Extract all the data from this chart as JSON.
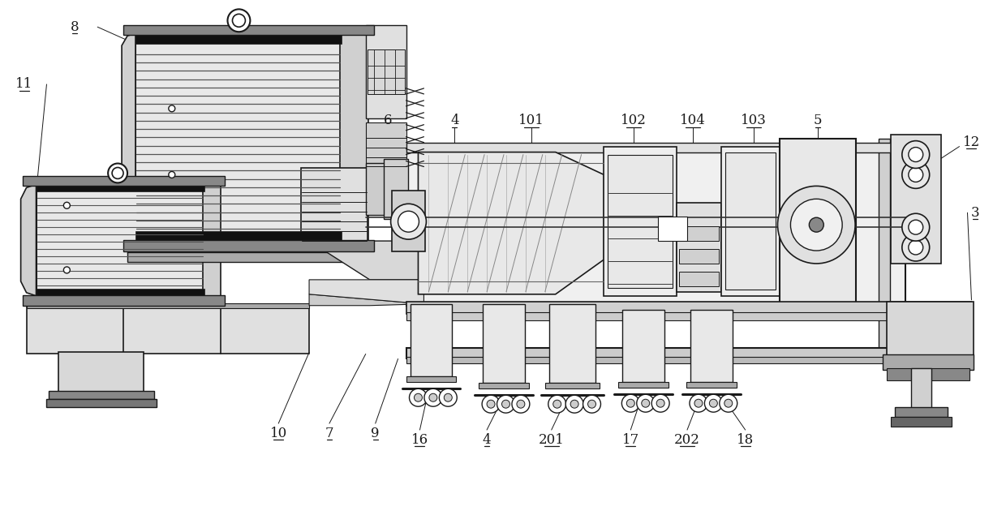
{
  "background_color": "#ffffff",
  "line_color": "#1a1a1a",
  "label_fontsize": 11,
  "line_width": 1.0,
  "figure_width": 12.4,
  "figure_height": 6.35,
  "dpi": 100
}
